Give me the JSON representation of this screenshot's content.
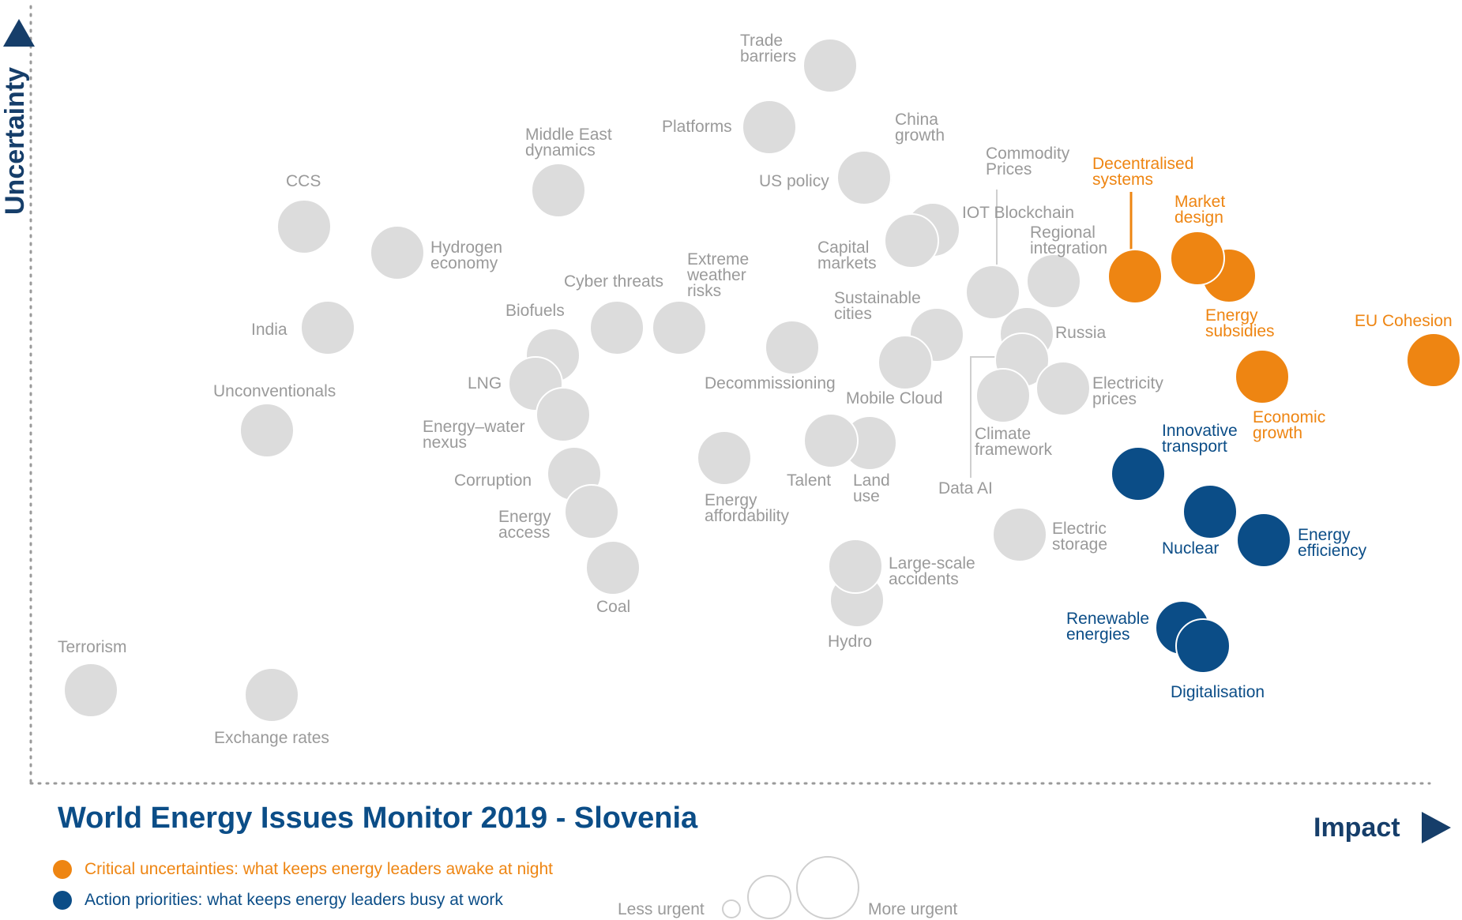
{
  "chart_data": {
    "type": "scatter",
    "title": "World Energy Issues Monitor 2019 - Slovenia",
    "xlabel": "Impact",
    "ylabel": "Uncertainty",
    "colors": {
      "grey": "#dcdcdc",
      "grey_text": "#9a9a9a",
      "orange": "#ee8512",
      "blue": "#0b4d87",
      "navy": "#163e6a"
    },
    "legend": [
      {
        "label": "Critical uncertainties: what keeps energy leaders awake at night",
        "group": "orange"
      },
      {
        "label": "Action priorities: what keeps energy leaders busy at work",
        "group": "blue"
      }
    ],
    "size_legend": {
      "less": "Less urgent",
      "more": "More urgent",
      "sizes": [
        0.3,
        0.7,
        1.0
      ]
    },
    "series": [
      {
        "name": "Trade barriers",
        "group": "grey",
        "x": 1051,
        "y": 83,
        "size": 1,
        "label": [
          "Trade",
          "barriers"
        ]
      },
      {
        "name": "Platforms",
        "group": "grey",
        "x": 974,
        "y": 161,
        "size": 1,
        "label": [
          "Platforms"
        ]
      },
      {
        "name": "China growth",
        "group": "grey",
        "x": 1096,
        "y": 225,
        "size": 1,
        "label": [
          "China",
          "growth"
        ]
      },
      {
        "name": "US policy",
        "group": "grey",
        "x": 1094,
        "y": 225,
        "size": 1,
        "label": [
          "US policy"
        ]
      },
      {
        "name": "Middle East dynamics",
        "group": "grey",
        "x": 707,
        "y": 241,
        "size": 1,
        "label": [
          "Middle East",
          "dynamics"
        ]
      },
      {
        "name": "CCS",
        "group": "grey",
        "x": 385,
        "y": 287,
        "size": 1,
        "label": [
          "CCS"
        ]
      },
      {
        "name": "Commodity Prices",
        "group": "grey",
        "x": 1257,
        "y": 370,
        "size": 1,
        "label": [
          "Commodity",
          "Prices"
        ]
      },
      {
        "name": "IOT Blockchain",
        "group": "grey",
        "x": 1181,
        "y": 291,
        "size": 1,
        "label": [
          "IOT Blockchain"
        ]
      },
      {
        "name": "Capital markets",
        "group": "grey",
        "x": 1154,
        "y": 305,
        "size": 1,
        "label": [
          "Capital",
          "markets"
        ]
      },
      {
        "name": "Regional integration",
        "group": "grey",
        "x": 1334,
        "y": 356,
        "size": 1,
        "label": [
          "Regional",
          "integration"
        ]
      },
      {
        "name": "Hydrogen economy",
        "group": "grey",
        "x": 503,
        "y": 320,
        "size": 1,
        "label": [
          "Hydrogen",
          "economy"
        ]
      },
      {
        "name": "Cyber threats",
        "group": "grey",
        "x": 781,
        "y": 415,
        "size": 1,
        "label": [
          "Cyber threats"
        ]
      },
      {
        "name": "Extreme weather risks",
        "group": "grey",
        "x": 860,
        "y": 415,
        "size": 1,
        "label": [
          "Extreme",
          "weather",
          "risks"
        ]
      },
      {
        "name": "India",
        "group": "grey",
        "x": 415,
        "y": 415,
        "size": 1,
        "label": [
          "India"
        ]
      },
      {
        "name": "Biofuels",
        "group": "grey",
        "x": 700,
        "y": 450,
        "size": 1,
        "label": [
          "Biofuels"
        ]
      },
      {
        "name": "Sustainable cities",
        "group": "grey",
        "x": 1186,
        "y": 424,
        "size": 1,
        "label": [
          "Sustainable",
          "cities"
        ]
      },
      {
        "name": "Russia",
        "group": "grey",
        "x": 1300,
        "y": 423,
        "size": 1,
        "label": [
          "Russia"
        ]
      },
      {
        "name": "Decommissioning",
        "group": "grey",
        "x": 1003,
        "y": 440,
        "size": 1,
        "label": [
          "Decommissioning"
        ]
      },
      {
        "name": "Data AI",
        "group": "grey",
        "x": 1294,
        "y": 456,
        "size": 1,
        "label": [
          "Data AI"
        ]
      },
      {
        "name": "Mobile Cloud",
        "group": "grey",
        "x": 1146,
        "y": 459,
        "size": 1,
        "label": [
          "Mobile Cloud"
        ]
      },
      {
        "name": "LNG",
        "group": "grey",
        "x": 678,
        "y": 486,
        "size": 1,
        "label": [
          "LNG"
        ]
      },
      {
        "name": "Electricity prices",
        "group": "grey",
        "x": 1346,
        "y": 492,
        "size": 1,
        "label": [
          "Electricity",
          "prices"
        ]
      },
      {
        "name": "Climate framework",
        "group": "grey",
        "x": 1270,
        "y": 501,
        "size": 1,
        "label": [
          "Climate",
          "framework"
        ]
      },
      {
        "name": "Unconventionals",
        "group": "grey",
        "x": 338,
        "y": 545,
        "size": 1,
        "label": [
          "Unconventionals"
        ]
      },
      {
        "name": "Energy-water nexus",
        "group": "grey",
        "x": 713,
        "y": 525,
        "size": 1,
        "label": [
          "Energy–water",
          "nexus"
        ]
      },
      {
        "name": "Land use",
        "group": "grey",
        "x": 1101,
        "y": 561,
        "size": 1,
        "label": [
          "Land",
          "use"
        ]
      },
      {
        "name": "Talent",
        "group": "grey",
        "x": 1052,
        "y": 558,
        "size": 1,
        "label": [
          "Talent"
        ]
      },
      {
        "name": "Corruption",
        "group": "grey",
        "x": 727,
        "y": 600,
        "size": 1,
        "label": [
          "Corruption"
        ]
      },
      {
        "name": "Energy affordability",
        "group": "grey",
        "x": 917,
        "y": 580,
        "size": 1,
        "label": [
          "Energy",
          "affordability"
        ]
      },
      {
        "name": "Energy access",
        "group": "grey",
        "x": 749,
        "y": 648,
        "size": 1,
        "label": [
          "Energy",
          "access"
        ]
      },
      {
        "name": "Electric storage",
        "group": "grey",
        "x": 1291,
        "y": 677,
        "size": 1,
        "label": [
          "Electric",
          "storage"
        ]
      },
      {
        "name": "Coal",
        "group": "grey",
        "x": 776,
        "y": 719,
        "size": 1,
        "label": [
          "Coal"
        ]
      },
      {
        "name": "Hydro",
        "group": "grey",
        "x": 1085,
        "y": 760,
        "size": 1,
        "label": [
          "Hydro"
        ]
      },
      {
        "name": "Large-scale accidents",
        "group": "grey",
        "x": 1083,
        "y": 717,
        "size": 1,
        "label": [
          "Large-scale",
          "accidents"
        ]
      },
      {
        "name": "Terrorism",
        "group": "grey",
        "x": 115,
        "y": 874,
        "size": 1,
        "label": [
          "Terrorism"
        ]
      },
      {
        "name": "Exchange rates",
        "group": "grey",
        "x": 344,
        "y": 880,
        "size": 1,
        "label": [
          "Exchange rates"
        ]
      },
      {
        "name": "Decentralised systems",
        "group": "orange",
        "x": 1437,
        "y": 350,
        "size": 1,
        "label": [
          "Decentralised",
          "systems"
        ]
      },
      {
        "name": "Energy subsidies",
        "group": "orange",
        "x": 1556,
        "y": 349,
        "size": 1,
        "label": [
          "Energy",
          "subsidies"
        ]
      },
      {
        "name": "Market design",
        "group": "orange",
        "x": 1516,
        "y": 327,
        "size": 1,
        "label": [
          "Market",
          "design"
        ]
      },
      {
        "name": "EU Cohesion",
        "group": "orange",
        "x": 1815,
        "y": 456,
        "size": 1,
        "label": [
          "EU Cohesion"
        ]
      },
      {
        "name": "Economic growth",
        "group": "orange",
        "x": 1598,
        "y": 477,
        "size": 1,
        "label": [
          "Economic",
          "growth"
        ]
      },
      {
        "name": "Innovative transport",
        "group": "blue",
        "x": 1441,
        "y": 600,
        "size": 1,
        "label": [
          "Innovative",
          "transport"
        ]
      },
      {
        "name": "Nuclear",
        "group": "blue",
        "x": 1532,
        "y": 648,
        "size": 1,
        "label": [
          "Nuclear"
        ]
      },
      {
        "name": "Energy efficiency",
        "group": "blue",
        "x": 1600,
        "y": 684,
        "size": 1,
        "label": [
          "Energy",
          "efficiency"
        ]
      },
      {
        "name": "Renewable energies",
        "group": "blue",
        "x": 1497,
        "y": 795,
        "size": 1,
        "label": [
          "Renewable",
          "energies"
        ]
      },
      {
        "name": "Digitalisation",
        "group": "blue",
        "x": 1523,
        "y": 818,
        "size": 1,
        "label": [
          "Digitalisation"
        ]
      }
    ]
  }
}
